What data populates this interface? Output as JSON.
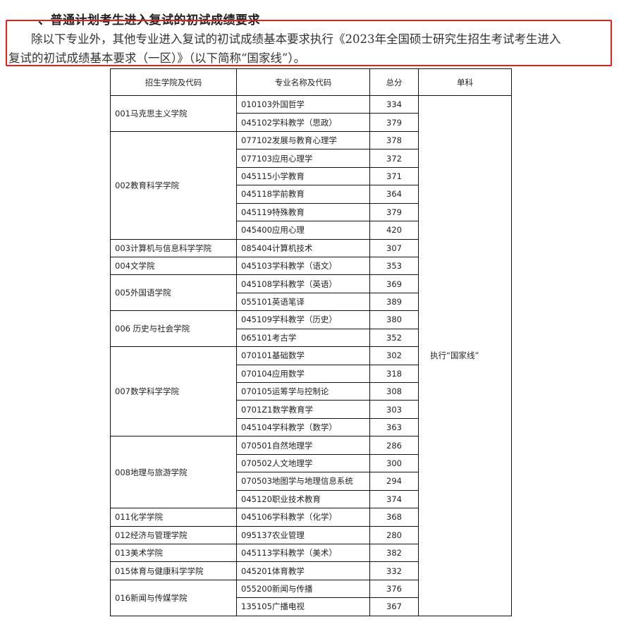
{
  "heading": "、普通计划考生进入复试的初试成绩要求",
  "paragraph": {
    "line1": "除以下专业外，其他专业进入复试的初试成绩基本要求执行《2023年全国硕士研究生招生考试考生进入",
    "line2": "复试的初试成绩基本要求（一区）》（以下简称“国家线”）。"
  },
  "highlight_color": "#e52020",
  "table": {
    "headers": [
      "招生学院及代码",
      "专业名称及代码",
      "总分",
      "单科"
    ],
    "single_subject_note": "执行“国家线”",
    "colleges": [
      {
        "name": "001马克思主义学院",
        "majors": [
          {
            "name": "010103外国哲学",
            "score": "334"
          },
          {
            "name": "045102学科教学（思政）",
            "score": "379"
          }
        ]
      },
      {
        "name": "002教育科学学院",
        "majors": [
          {
            "name": "077102发展与教育心理学",
            "score": "378"
          },
          {
            "name": "077103应用心理学",
            "score": "372"
          },
          {
            "name": "045115小学教育",
            "score": "371"
          },
          {
            "name": "045118学前教育",
            "score": "364"
          },
          {
            "name": "045119特殊教育",
            "score": "379"
          },
          {
            "name": "045400应用心理",
            "score": "420"
          }
        ]
      },
      {
        "name": "003计算机与信息科学学院",
        "majors": [
          {
            "name": "085404计算机技术",
            "score": "307"
          }
        ]
      },
      {
        "name": "004文学院",
        "majors": [
          {
            "name": "045103学科教学（语文）",
            "score": "353"
          }
        ]
      },
      {
        "name": "005外国语学院",
        "majors": [
          {
            "name": "045108学科教学（英语）",
            "score": "369"
          },
          {
            "name": "055101英语笔译",
            "score": "389"
          }
        ]
      },
      {
        "name": "006 历史与社会学院",
        "majors": [
          {
            "name": "045109学科教学（历史）",
            "score": "380"
          },
          {
            "name": "065101考古学",
            "score": "352"
          }
        ]
      },
      {
        "name": "007数学科学学院",
        "majors": [
          {
            "name": "070101基础数学",
            "score": "302"
          },
          {
            "name": "070104应用数学",
            "score": "318"
          },
          {
            "name": "070105运筹学与控制论",
            "score": "308"
          },
          {
            "name": "0701Z1数学教育学",
            "score": "303"
          },
          {
            "name": "045104学科教学（数学）",
            "score": "363"
          }
        ]
      },
      {
        "name": "008地理与旅游学院",
        "majors": [
          {
            "name": "070501自然地理学",
            "score": "286"
          },
          {
            "name": "070502人文地理学",
            "score": "300"
          },
          {
            "name": "070503地图学与地理信息系统",
            "score": "294"
          },
          {
            "name": "045120职业技术教育",
            "score": "374"
          }
        ]
      },
      {
        "name": "011化学学院",
        "majors": [
          {
            "name": "045106学科教学（化学）",
            "score": "368"
          }
        ]
      },
      {
        "name": "012经济与管理学院",
        "majors": [
          {
            "name": "095137农业管理",
            "score": "280"
          }
        ]
      },
      {
        "name": "013美术学院",
        "majors": [
          {
            "name": "045113学科教学（美术）",
            "score": "382"
          }
        ]
      },
      {
        "name": "015体育与健康科学学院",
        "majors": [
          {
            "name": "045201体育教学",
            "score": "332"
          }
        ]
      },
      {
        "name": "016新闻与传媒学院",
        "majors": [
          {
            "name": "055200新闻与传播",
            "score": "376"
          },
          {
            "name": "135105广播电视",
            "score": "367"
          }
        ]
      }
    ]
  }
}
